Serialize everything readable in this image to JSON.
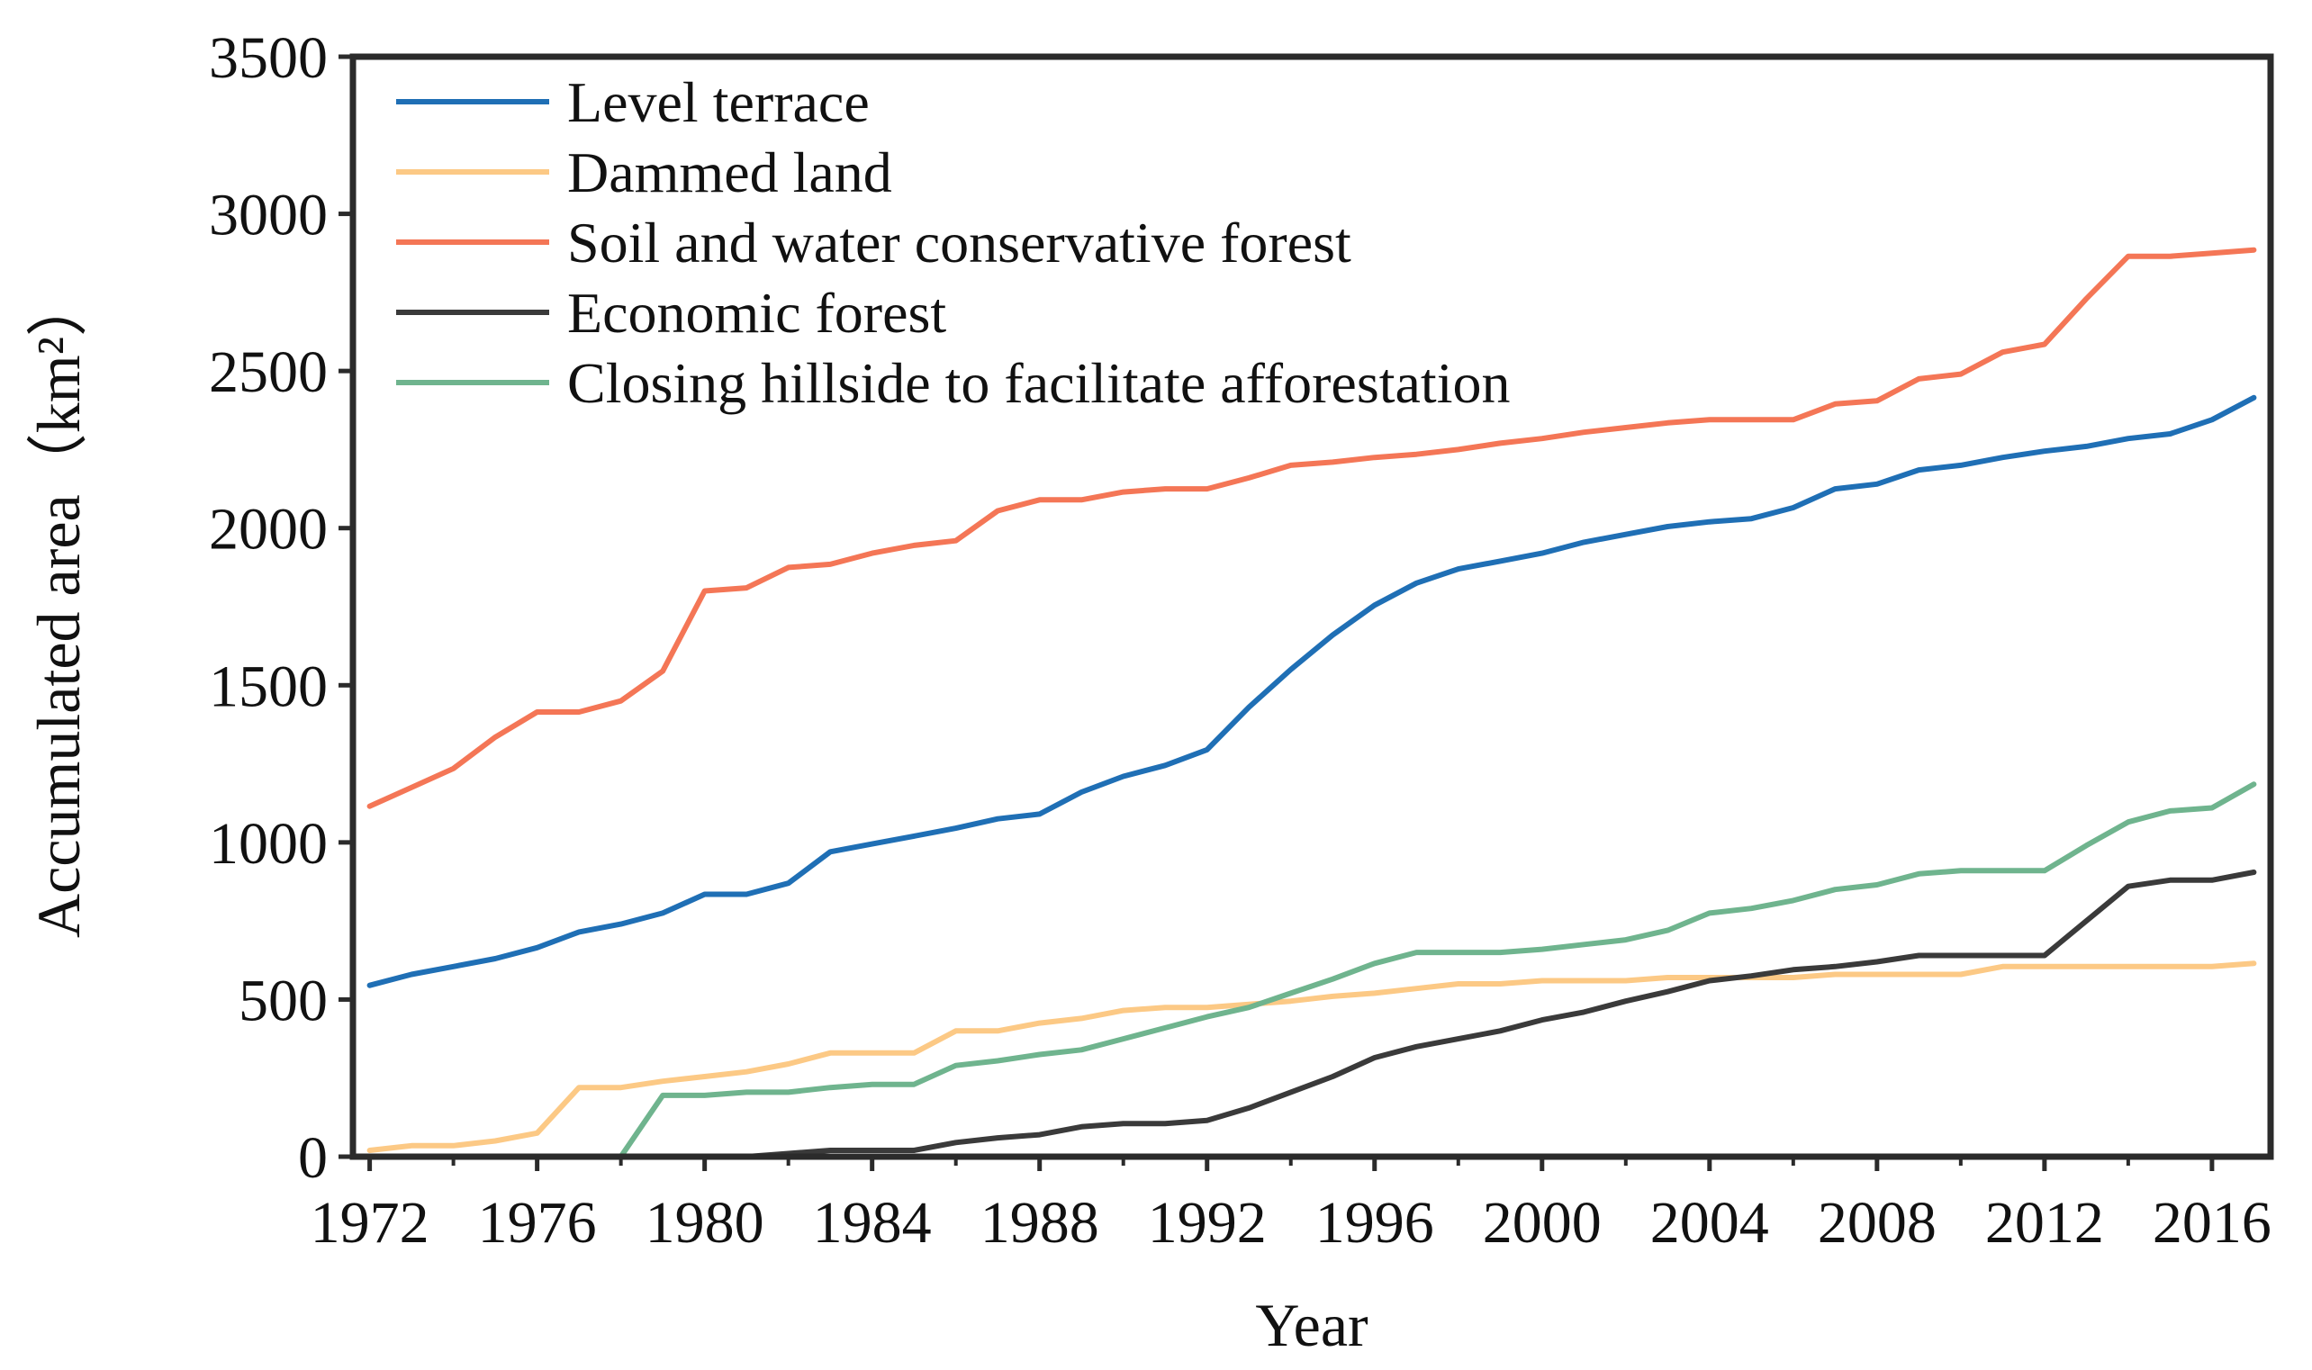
{
  "chart_data": {
    "type": "line",
    "title": "",
    "xlabel": "Year",
    "ylabel": "Accumulated area（km²）",
    "xlim": [
      1971.6,
      2017.4
    ],
    "ylim": [
      0,
      3500
    ],
    "x_ticks": [
      "1972",
      "1976",
      "1980",
      "1984",
      "1988",
      "1992",
      "1996",
      "2000",
      "2004",
      "2008",
      "2012",
      "2016"
    ],
    "y_ticks": [
      "0",
      "500",
      "1000",
      "1500",
      "2000",
      "2500",
      "3000",
      "3500"
    ],
    "grid": false,
    "legend_position": "top-left",
    "x": [
      1972,
      1973,
      1974,
      1975,
      1976,
      1977,
      1978,
      1979,
      1980,
      1981,
      1982,
      1983,
      1984,
      1985,
      1986,
      1987,
      1988,
      1989,
      1990,
      1991,
      1992,
      1993,
      1994,
      1995,
      1996,
      1997,
      1998,
      1999,
      2000,
      2001,
      2002,
      2003,
      2004,
      2005,
      2006,
      2007,
      2008,
      2009,
      2010,
      2011,
      2012,
      2013,
      2014,
      2015,
      2016,
      2017
    ],
    "series": [
      {
        "name": "Level terrace",
        "color": "#1f6fb5",
        "values": [
          545,
          580,
          605,
          630,
          665,
          715,
          740,
          775,
          835,
          835,
          870,
          970,
          995,
          1020,
          1045,
          1075,
          1090,
          1160,
          1210,
          1245,
          1295,
          1430,
          1550,
          1660,
          1755,
          1825,
          1870,
          1895,
          1920,
          1955,
          1980,
          2005,
          2020,
          2030,
          2065,
          2125,
          2140,
          2185,
          2200,
          2225,
          2245,
          2260,
          2285,
          2300,
          2345,
          2415
        ]
      },
      {
        "name": "Dammed land",
        "color": "#fcc985",
        "values": [
          20,
          35,
          35,
          50,
          75,
          220,
          220,
          240,
          255,
          270,
          295,
          330,
          330,
          330,
          400,
          400,
          425,
          440,
          465,
          475,
          475,
          485,
          495,
          510,
          520,
          535,
          550,
          550,
          560,
          560,
          560,
          570,
          570,
          570,
          570,
          580,
          580,
          580,
          580,
          605,
          605,
          605,
          605,
          605,
          605,
          615
        ]
      },
      {
        "name": "Soil and water conservative forest",
        "color": "#f47656",
        "values": [
          1115,
          1175,
          1235,
          1335,
          1415,
          1415,
          1450,
          1545,
          1800,
          1810,
          1875,
          1885,
          1920,
          1945,
          1960,
          2055,
          2090,
          2090,
          2115,
          2125,
          2125,
          2160,
          2200,
          2210,
          2225,
          2235,
          2250,
          2270,
          2285,
          2305,
          2320,
          2335,
          2345,
          2345,
          2345,
          2395,
          2405,
          2475,
          2490,
          2560,
          2585,
          2730,
          2865,
          2865,
          2875,
          2885
        ]
      },
      {
        "name": "Economic forest",
        "color": "#3a3a3a",
        "values": [
          0,
          0,
          0,
          0,
          0,
          0,
          0,
          0,
          0,
          0,
          10,
          20,
          20,
          20,
          45,
          60,
          70,
          95,
          105,
          105,
          115,
          155,
          205,
          255,
          315,
          350,
          375,
          400,
          435,
          460,
          495,
          525,
          560,
          575,
          595,
          605,
          620,
          640,
          640,
          640,
          640,
          750,
          860,
          880,
          880,
          905
        ]
      },
      {
        "name": "Closing hillside to facilitate afforestation",
        "color": "#6fb48e",
        "values": [
          0,
          0,
          0,
          0,
          0,
          0,
          0,
          195,
          195,
          205,
          205,
          220,
          230,
          230,
          290,
          305,
          325,
          340,
          375,
          410,
          445,
          475,
          520,
          565,
          615,
          650,
          650,
          650,
          660,
          675,
          690,
          720,
          775,
          790,
          815,
          850,
          865,
          900,
          910,
          910,
          910,
          990,
          1065,
          1100,
          1110,
          1185
        ]
      }
    ]
  }
}
